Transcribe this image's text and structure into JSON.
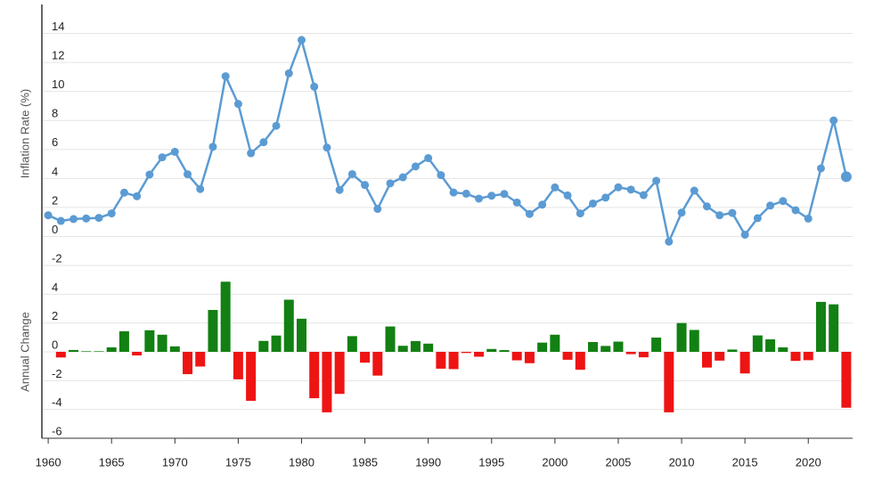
{
  "chart_data": [
    {
      "type": "line",
      "y_label": "Inflation Rate (%)",
      "color": "#5b9bd3",
      "grid": true,
      "x": [
        1960,
        1961,
        1962,
        1963,
        1964,
        1965,
        1966,
        1967,
        1968,
        1969,
        1970,
        1971,
        1972,
        1973,
        1974,
        1975,
        1976,
        1977,
        1978,
        1979,
        1980,
        1981,
        1982,
        1983,
        1984,
        1985,
        1986,
        1987,
        1988,
        1989,
        1990,
        1991,
        1992,
        1993,
        1994,
        1995,
        1996,
        1997,
        1998,
        1999,
        2000,
        2001,
        2002,
        2003,
        2004,
        2005,
        2006,
        2007,
        2008,
        2009,
        2010,
        2011,
        2012,
        2013,
        2014,
        2015,
        2016,
        2017,
        2018,
        2019,
        2020,
        2021,
        2022,
        2023
      ],
      "values": [
        1.46,
        1.07,
        1.2,
        1.24,
        1.28,
        1.59,
        3.02,
        2.77,
        4.27,
        5.46,
        5.84,
        4.29,
        3.27,
        6.18,
        11.05,
        9.14,
        5.74,
        6.5,
        7.63,
        11.25,
        13.55,
        10.33,
        6.13,
        3.21,
        4.3,
        3.55,
        1.9,
        3.66,
        4.08,
        4.83,
        5.4,
        4.23,
        3.03,
        2.95,
        2.61,
        2.81,
        2.93,
        2.34,
        1.55,
        2.19,
        3.38,
        2.83,
        1.59,
        2.27,
        2.68,
        3.39,
        3.23,
        2.85,
        3.84,
        -0.36,
        1.64,
        3.16,
        2.07,
        1.46,
        1.62,
        0.12,
        1.26,
        2.13,
        2.44,
        1.81,
        1.23,
        4.7,
        8.0,
        4.12
      ],
      "xlim": [
        1959.5,
        2023.5
      ],
      "ylim": [
        -2,
        16
      ],
      "yticks": [
        -2,
        0,
        2,
        4,
        6,
        8,
        10,
        12,
        14
      ]
    },
    {
      "type": "bar",
      "y_label": "Annual Change",
      "positive_color": "#128012",
      "negative_color": "#ee1414",
      "grid": true,
      "x": [
        1960,
        1961,
        1962,
        1963,
        1964,
        1965,
        1966,
        1967,
        1968,
        1969,
        1970,
        1971,
        1972,
        1973,
        1974,
        1975,
        1976,
        1977,
        1978,
        1979,
        1980,
        1981,
        1982,
        1983,
        1984,
        1985,
        1986,
        1987,
        1988,
        1989,
        1990,
        1991,
        1992,
        1993,
        1994,
        1995,
        1996,
        1997,
        1998,
        1999,
        2000,
        2001,
        2002,
        2003,
        2004,
        2005,
        2006,
        2007,
        2008,
        2009,
        2010,
        2011,
        2012,
        2013,
        2014,
        2015,
        2016,
        2017,
        2018,
        2019,
        2020,
        2021,
        2022,
        2023
      ],
      "values": [
        null,
        -0.39,
        0.13,
        0.04,
        0.04,
        0.31,
        1.43,
        -0.25,
        1.5,
        1.19,
        0.38,
        -1.55,
        -1.02,
        2.91,
        4.87,
        -1.91,
        -3.4,
        0.76,
        1.13,
        3.62,
        2.3,
        -3.22,
        -4.2,
        -2.92,
        1.09,
        -0.75,
        -1.65,
        1.76,
        0.42,
        0.75,
        0.57,
        -1.17,
        -1.2,
        -0.08,
        -0.34,
        0.2,
        0.12,
        -0.59,
        -0.79,
        0.64,
        1.19,
        -0.55,
        -1.24,
        0.68,
        0.41,
        0.71,
        -0.16,
        -0.38,
        0.99,
        -4.2,
        2.0,
        1.52,
        -1.09,
        -0.61,
        0.16,
        -1.5,
        1.14,
        0.87,
        0.31,
        -0.63,
        -0.58,
        3.47,
        3.3,
        -3.88
      ],
      "xlim": [
        1959.5,
        2023.5
      ],
      "ylim": [
        -6,
        6
      ],
      "yticks": [
        -6,
        -4,
        -2,
        0,
        2,
        4
      ],
      "xticks": [
        1960,
        1965,
        1970,
        1975,
        1980,
        1985,
        1990,
        1995,
        2000,
        2005,
        2010,
        2015,
        2020
      ]
    }
  ]
}
